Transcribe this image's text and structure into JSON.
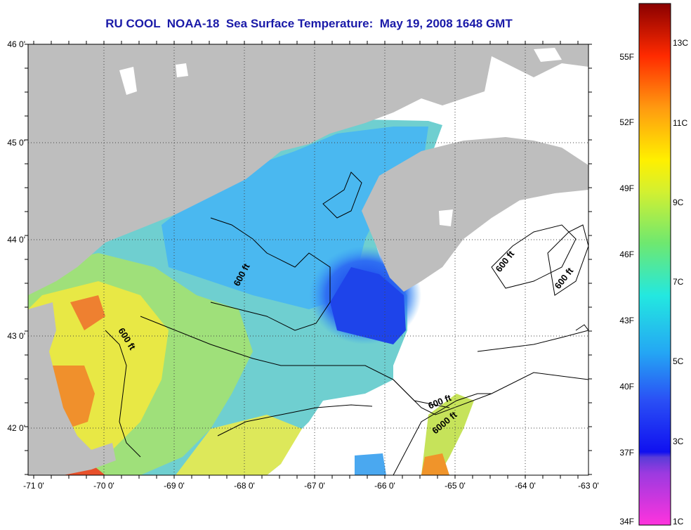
{
  "title": "RU COOL  NOAA-18  Sea Surface Temperature:  May 19, 2008 1648 GMT",
  "lon_ticks": [
    "-71 0'",
    "-70 0'",
    "-69 0'",
    "-68 0'",
    "-67 0'",
    "-66 0'",
    "-65 0'",
    "-64 0'",
    "-63 0'"
  ],
  "lat_ticks": [
    "46 0'",
    "45 0'",
    "44 0'",
    "43 0'",
    "42 0'"
  ],
  "contour_labels": [
    "600 ft",
    "600 ft",
    "600 ft",
    "600 ft",
    "600 ft",
    "6000 ft"
  ],
  "colorbar": {
    "fahrenheit": [
      "55F",
      "52F",
      "49F",
      "46F",
      "43F",
      "40F",
      "37F",
      "34F"
    ],
    "celsius": [
      "13C",
      "11C",
      "9C",
      "7C",
      "5C",
      "3C",
      "1C"
    ]
  },
  "colors": {
    "land": "#bebebe",
    "no_data": "#ffffff",
    "cold": "#1a3ff0",
    "cool": "#3aa8f5",
    "mid": "#9ee27a",
    "warm": "#f0ea3a",
    "hot": "#f08a28"
  }
}
